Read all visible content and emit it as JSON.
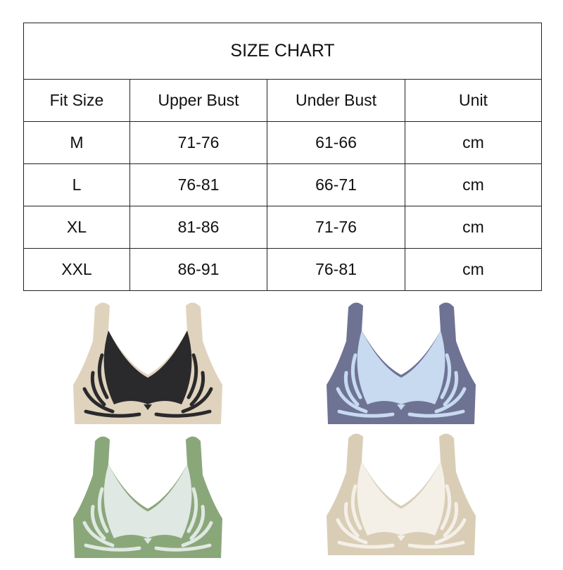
{
  "size_chart": {
    "title": "SIZE CHART",
    "headers": [
      "Fit Size",
      "Upper Bust",
      "Under Bust",
      "Unit"
    ],
    "rows": [
      [
        "M",
        "71-76",
        "61-66",
        "cm"
      ],
      [
        "L",
        "76-81",
        "66-71",
        "cm"
      ],
      [
        "XL",
        "81-86",
        "71-76",
        "cm"
      ],
      [
        "XXL",
        "86-91",
        "76-81",
        "cm"
      ]
    ]
  },
  "products": [
    {
      "name": "black-bra",
      "trim": "#e0d3be",
      "inner": "#2a2a2c"
    },
    {
      "name": "blue-bra",
      "trim": "#6e7394",
      "inner": "#c7daf0"
    },
    {
      "name": "green-bra",
      "trim": "#8aa77a",
      "inner": "#dfe8e2"
    },
    {
      "name": "cream-bra",
      "trim": "#d9cdb6",
      "inner": "#f4f0e7"
    }
  ]
}
